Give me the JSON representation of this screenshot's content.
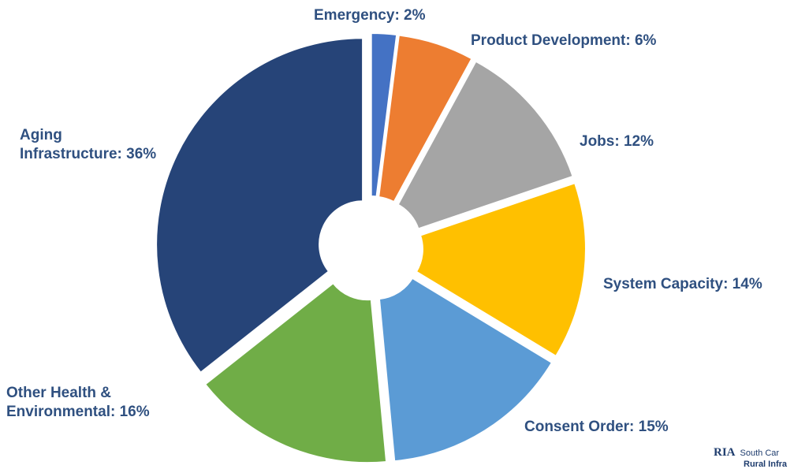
{
  "chart_data": {
    "type": "donut",
    "values": [
      2,
      6,
      12,
      14,
      15,
      16,
      36
    ],
    "value_labels": [
      "Emergency: 2%",
      "Product Development: 6%",
      "Jobs: 12%",
      "System Capacity: 14%",
      "Consent Order: 15%",
      "Other Health & Environmental: 16%",
      "Aging Infrastructure: 36%"
    ],
    "colors": [
      "#4472c4",
      "#ed7d31",
      "#a5a5a5",
      "#ffc000",
      "#5b9bd5",
      "#70ad47",
      "#264478"
    ]
  },
  "logo": {
    "mark": "RIA",
    "line1": "South Car",
    "line2": "Rural Infra"
  }
}
